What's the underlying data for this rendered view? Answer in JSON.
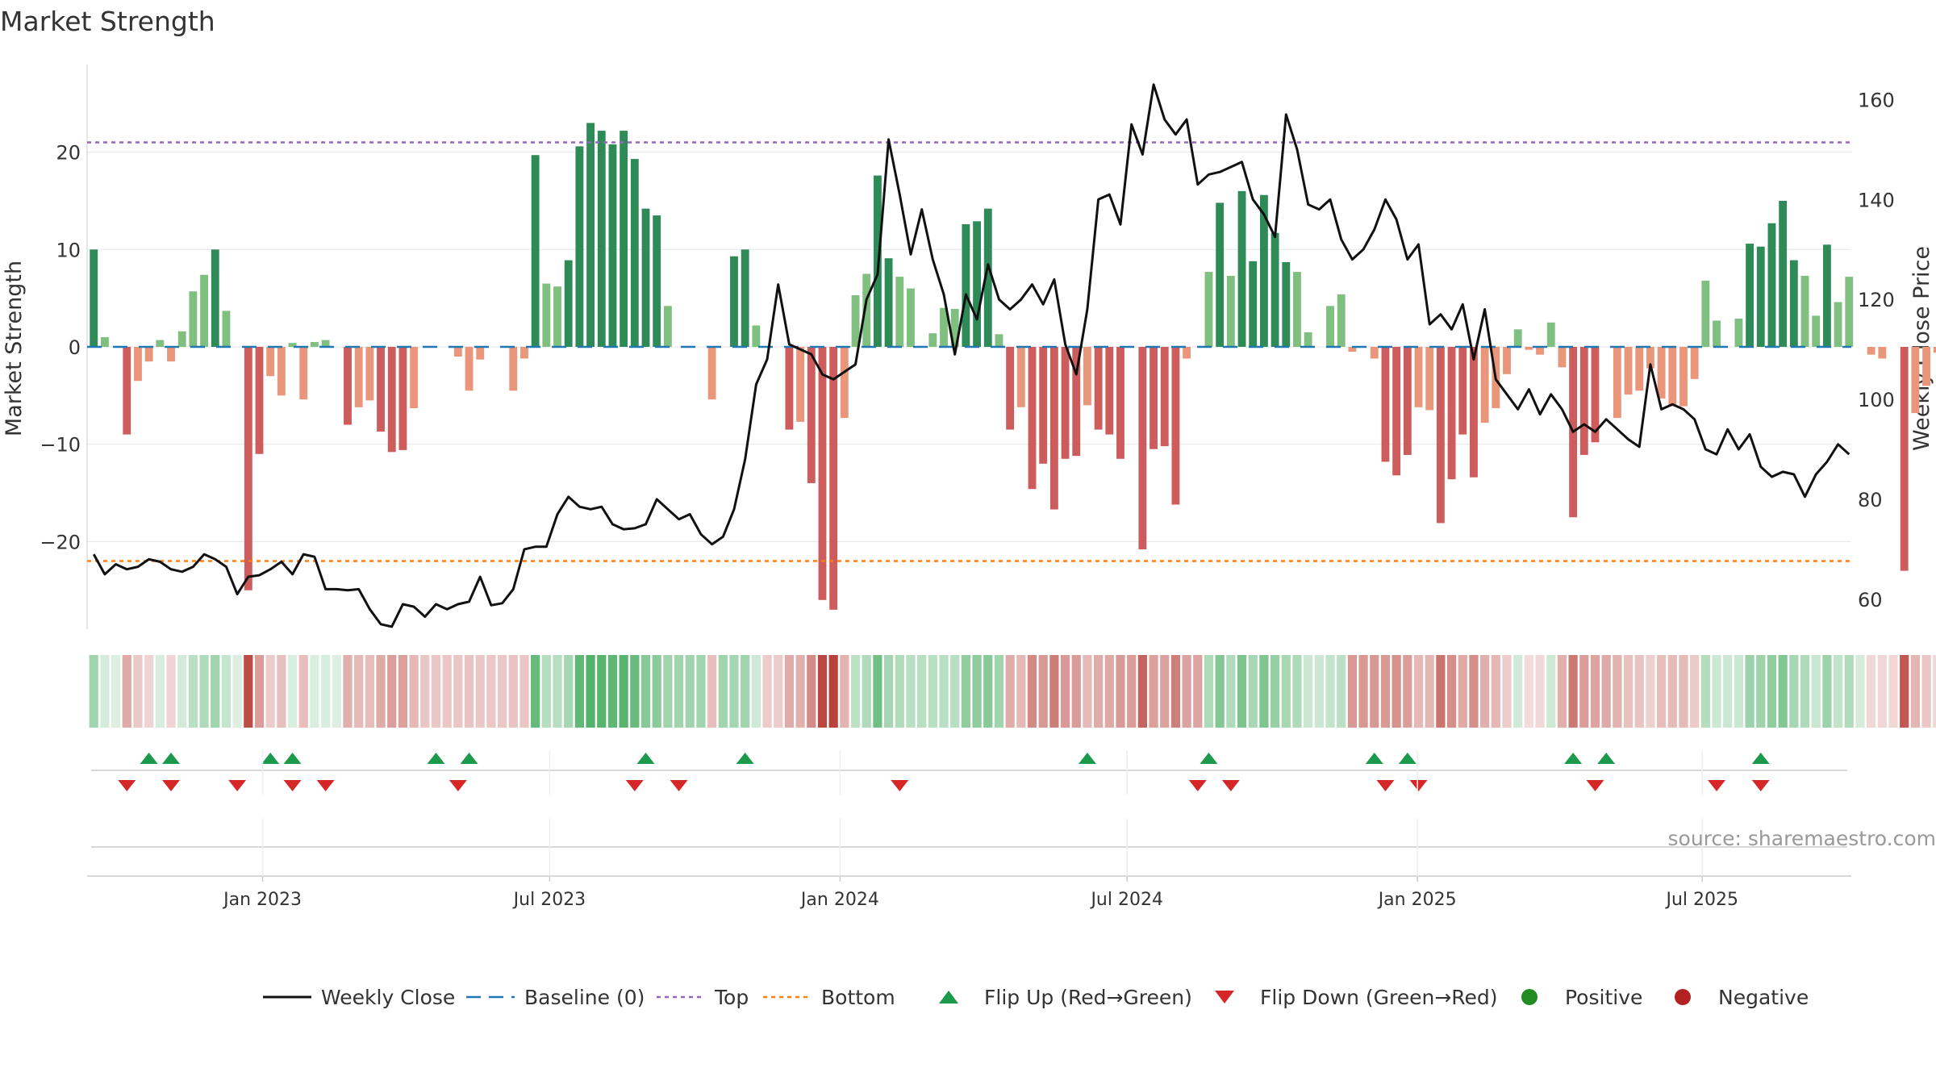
{
  "title": "Market Strength",
  "source": "source: sharemaestro.com",
  "colors": {
    "posStrong": "#2e8b57",
    "posWeak": "#7fbf7f",
    "negStrong": "#cd5c5c",
    "negWeak": "#e9967a",
    "close": "#111111",
    "baseline": "#1f77b4",
    "top": "#9467bd",
    "bottom": "#ff7f0e",
    "flipUp": "#1a9a4a",
    "flipDown": "#d62728",
    "positive": "#228b22",
    "negative": "#b22222",
    "grid": "#e6e6e6",
    "axis": "#cccccc",
    "text": "#333333"
  },
  "chart_data": {
    "type": "bar+line",
    "title": "Market Strength",
    "ylabel": "Market Strength",
    "y2label": "Weekly Close Price",
    "ylim": [
      -29,
      29
    ],
    "y2lim": [
      54,
      167
    ],
    "yticks": [
      -20,
      -10,
      0,
      10,
      20
    ],
    "y2ticks": [
      60,
      80,
      100,
      120,
      140,
      160
    ],
    "x_start": "2022-09-19",
    "x_range_weeks": [
      -0.6,
      159.2
    ],
    "xticks": [
      {
        "label": "Jan 2023",
        "week": 15.3
      },
      {
        "label": "Jul 2023",
        "week": 41.3
      },
      {
        "label": "Jan 2024",
        "week": 67.6
      },
      {
        "label": "Jul 2024",
        "week": 93.6
      },
      {
        "label": "Jan 2025",
        "week": 119.9
      },
      {
        "label": "Jul 2025",
        "week": 145.7
      }
    ],
    "top_threshold": 21,
    "bottom_threshold": -22,
    "strength": [
      10,
      1,
      0,
      -9,
      -3.5,
      -1.5,
      0.7,
      -1.5,
      1.6,
      5.7,
      7.4,
      10,
      3.7,
      0,
      -25,
      -11,
      -3,
      -5,
      0.4,
      -5.4,
      0.5,
      0.7,
      0,
      -8,
      -6.2,
      -5.5,
      -8.7,
      -10.8,
      -10.6,
      -6.3,
      0,
      0,
      0,
      -1,
      -4.5,
      -1.3,
      0,
      0,
      -4.5,
      -1.2,
      19.7,
      6.5,
      6.2,
      8.9,
      20.6,
      23,
      22.2,
      20.8,
      22.2,
      19.3,
      14.2,
      13.5,
      4.2,
      0,
      0,
      0,
      -5.4,
      0,
      9.3,
      10,
      2.2,
      0,
      0,
      -8.5,
      -7.7,
      -14,
      -26,
      -27,
      -7.3,
      5.3,
      7.5,
      17.6,
      9.1,
      7.2,
      6,
      0,
      1.4,
      4,
      3.9,
      12.6,
      12.9,
      14.2,
      1.3,
      -8.5,
      -6.2,
      -14.6,
      -12,
      -16.7,
      -11.5,
      -11.2,
      -6,
      -8.5,
      -9,
      -11.5,
      0,
      -20.8,
      -10.5,
      -10.2,
      -16.2,
      -1.2,
      0,
      7.7,
      14.8,
      7.3,
      16,
      8.8,
      15.6,
      11.7,
      8.7,
      7.7,
      1.5,
      0,
      4.2,
      5.4,
      -0.5,
      0,
      -1.2,
      -11.8,
      -13.2,
      -11.1,
      -6.2,
      -6.5,
      -18.1,
      -13.6,
      -9,
      -13.4,
      -7.8,
      -6.3,
      -2.8,
      1.8,
      -0.3,
      -0.8,
      2.5,
      -2.1,
      -17.5,
      -11.1,
      -9.8,
      0,
      -7.3,
      -4.9,
      -4.5,
      -2.2,
      -5.3,
      -6.1,
      -6.1,
      -3.3,
      6.8,
      2.7,
      0,
      2.9,
      10.6,
      10.3,
      12.7,
      15,
      8.9,
      7.3,
      3.2,
      10.5,
      4.6,
      7.2,
      0,
      -0.8,
      -1.2,
      0,
      -23,
      -6.8,
      -4,
      -0.6
    ],
    "weekly_close": [
      69,
      65,
      67,
      66,
      66.5,
      68,
      67.5,
      66,
      65.5,
      66.5,
      69,
      68,
      66.5,
      61,
      64.5,
      64.8,
      66,
      67.5,
      65,
      69,
      68.5,
      62,
      62,
      61.8,
      62,
      58,
      55,
      54.5,
      59,
      58.5,
      56.5,
      59,
      58,
      59,
      59.5,
      64.5,
      58.8,
      59.2,
      62,
      70,
      70.5,
      70.5,
      77,
      80.5,
      78.5,
      78,
      78.5,
      75,
      74,
      74.2,
      75,
      80,
      78,
      76,
      77,
      73,
      71,
      72.5,
      78,
      88,
      103,
      108,
      123,
      111,
      110,
      109,
      105,
      104,
      105.5,
      107,
      120,
      125,
      152,
      141,
      129,
      138,
      128,
      121,
      109,
      121,
      116,
      127,
      120,
      118,
      120,
      123,
      119,
      124,
      111,
      105,
      118,
      140,
      141,
      135,
      155,
      149,
      163,
      156,
      153,
      156,
      143,
      145,
      145.5,
      146.5,
      147.5,
      140,
      137,
      132.5,
      157,
      150,
      139,
      138,
      140,
      132,
      128,
      130,
      134,
      140,
      136,
      128,
      131,
      115,
      117,
      114,
      119,
      108,
      118,
      104,
      101,
      98,
      102,
      97,
      101,
      98,
      93.5,
      95,
      93.5,
      96,
      94,
      92,
      90.5,
      107,
      98,
      99,
      98,
      96,
      90,
      89,
      94,
      90,
      93,
      86.5,
      84.5,
      85.5,
      85,
      80.5,
      85,
      87.5,
      91,
      89
    ],
    "heat_strength": [
      10,
      1,
      0,
      -9,
      -3.5,
      -1.5,
      0.7,
      -1.5,
      1.6,
      5.7,
      7.4,
      10,
      3.7,
      0,
      -25,
      -11,
      -3,
      -5,
      0.4,
      -5.4,
      0.5,
      0.7,
      0,
      -8,
      -6.2,
      -5.5,
      -8.7,
      -10.8,
      -10.6,
      -6.3,
      -4,
      -4,
      -4,
      -4,
      -4.5,
      -4,
      -4,
      -4,
      -4.5,
      -4,
      19.7,
      6.5,
      6.2,
      8.9,
      20.6,
      23,
      22.2,
      20.8,
      22.2,
      19.3,
      14.2,
      13.5,
      10,
      10,
      10,
      10,
      -5.4,
      10,
      9.3,
      10,
      2.2,
      -3,
      -3,
      -8.5,
      -7.7,
      -14,
      -26,
      -27,
      -7.3,
      5.3,
      7.5,
      17.6,
      9.1,
      7.2,
      6,
      6,
      6,
      6,
      6,
      12.6,
      12.9,
      14.2,
      10,
      -8.5,
      -6.2,
      -14.6,
      -12,
      -16.7,
      -11.5,
      -11.2,
      -6,
      -8.5,
      -9,
      -11.5,
      -11,
      -20.8,
      -10.5,
      -10.2,
      -16.2,
      -10,
      -10,
      7.7,
      14.8,
      7.3,
      16,
      8.8,
      15.6,
      11.7,
      8.7,
      7.7,
      3,
      3,
      4.2,
      5.4,
      -12,
      -12,
      -12,
      -11.8,
      -13.2,
      -11.1,
      -6.2,
      -6.5,
      -18.1,
      -13.6,
      -9,
      -13.4,
      -7.8,
      -6.3,
      -2.8,
      1.8,
      -0.3,
      -0.8,
      2.5,
      -8,
      -17.5,
      -11.1,
      -9.8,
      -9,
      -7.3,
      -4.9,
      -4.5,
      -2.2,
      -5.3,
      -6.1,
      -6.1,
      -3.3,
      6.8,
      2.7,
      3,
      3,
      10.6,
      10.3,
      12.7,
      15,
      8.9,
      7.3,
      3.2,
      10.5,
      4.6,
      7.2,
      1,
      -0.8,
      -1.2,
      -1,
      -23,
      -6.8,
      -4,
      -0.6
    ],
    "flip_up": [
      5,
      7,
      16,
      18,
      31,
      34,
      50,
      59,
      90,
      101,
      116,
      119,
      134,
      137,
      151
    ],
    "flip_down": [
      3,
      7,
      13,
      18,
      21,
      33,
      49,
      53,
      73,
      100,
      103,
      117,
      120,
      136,
      147,
      151
    ],
    "legend": [
      "Weekly Close",
      "Baseline (0)",
      "Top",
      "Bottom",
      "Flip Up (Red→Green)",
      "Flip Down (Green→Red)",
      "Positive",
      "Negative"
    ]
  }
}
